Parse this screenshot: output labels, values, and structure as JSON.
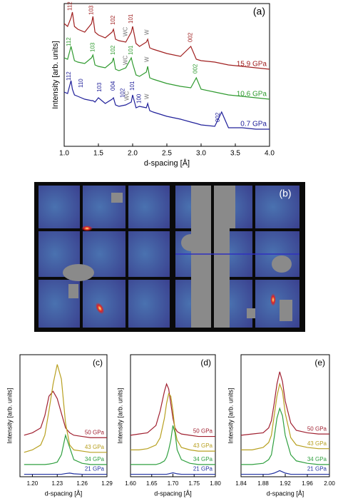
{
  "chart_data": [
    {
      "type": "line",
      "title": "(a)",
      "x_label": "d-spacing [Å]",
      "y_label": "Intensity [arb. units]",
      "xlim": [
        1,
        4
      ],
      "ylim": [
        0,
        100
      ],
      "xticks": [
        {
          "value": 1,
          "label": "1.0"
        },
        1.5,
        {
          "value": 2,
          "label": "2.0"
        },
        2.5,
        {
          "value": 3,
          "label": "3.0"
        },
        3.5,
        {
          "value": 4,
          "label": "4.0"
        }
      ],
      "x": [
        1.0,
        1.05,
        1.1,
        1.12,
        1.15,
        1.2,
        1.3,
        1.4,
        1.42,
        1.45,
        1.5,
        1.6,
        1.7,
        1.72,
        1.75,
        1.8,
        1.9,
        1.98,
        2.0,
        2.05,
        2.1,
        2.2,
        2.22,
        2.25,
        2.3,
        2.5,
        2.7,
        2.85,
        2.93,
        3.0,
        3.2,
        3.3,
        3.4,
        3.6,
        3.8,
        4.0
      ],
      "series": [
        {
          "name": "15.9 GPa",
          "color": "#a02020",
          "values": [
            86,
            84,
            90,
            94,
            84,
            82,
            80,
            86,
            91,
            80,
            78,
            76,
            80,
            82,
            75,
            74,
            73,
            80,
            84,
            72,
            70,
            73,
            75,
            69,
            68,
            65,
            63,
            70,
            61,
            60,
            59,
            58,
            57,
            56,
            55,
            54
          ]
        },
        {
          "name": "10.6 GPa",
          "color": "#2f9a2f",
          "values": [
            62,
            61,
            70,
            66,
            60,
            59,
            58,
            62,
            64,
            57,
            56,
            55,
            59,
            62,
            54,
            53,
            55,
            62,
            58,
            50,
            49,
            52,
            56,
            48,
            47,
            44,
            42,
            41,
            48,
            40,
            38,
            37,
            36,
            35,
            34,
            33
          ]
        },
        {
          "name": "0.7 GPa",
          "color": "#20209a",
          "values": [
            38,
            37,
            46,
            40,
            36,
            35,
            33,
            32,
            32,
            31,
            34,
            30,
            33,
            34,
            29,
            28,
            29,
            31,
            36,
            27,
            28,
            27,
            30,
            25,
            24,
            21,
            19,
            17,
            16,
            15,
            14,
            24,
            13,
            13,
            12,
            12
          ]
        }
      ],
      "annotations": [
        {
          "text": "112",
          "x": 1.09,
          "y": 95,
          "color": "#a02020"
        },
        {
          "text": "103",
          "x": 1.4,
          "y": 92,
          "color": "#a02020"
        },
        {
          "text": "102",
          "x": 1.72,
          "y": 85,
          "color": "#a02020"
        },
        {
          "text": "101",
          "x": 1.98,
          "y": 86,
          "color": "#a02020"
        },
        {
          "text": "WC",
          "x": 1.9,
          "y": 77,
          "color": "#777777"
        },
        {
          "text": "W",
          "x": 2.21,
          "y": 78,
          "color": "#777777"
        },
        {
          "text": "002",
          "x": 2.85,
          "y": 73,
          "color": "#a02020"
        },
        {
          "text": "112",
          "x": 1.07,
          "y": 70,
          "color": "#2f9a2f"
        },
        {
          "text": "103",
          "x": 1.42,
          "y": 66,
          "color": "#2f9a2f"
        },
        {
          "text": "102",
          "x": 1.72,
          "y": 64,
          "color": "#2f9a2f"
        },
        {
          "text": "101",
          "x": 1.98,
          "y": 64,
          "color": "#2f9a2f"
        },
        {
          "text": "WC",
          "x": 1.9,
          "y": 57,
          "color": "#777777"
        },
        {
          "text": "W",
          "x": 2.21,
          "y": 59,
          "color": "#777777"
        },
        {
          "text": "002",
          "x": 2.92,
          "y": 51,
          "color": "#2f9a2f"
        },
        {
          "text": "112",
          "x": 1.07,
          "y": 46,
          "color": "#20209a"
        },
        {
          "text": "110",
          "x": 1.25,
          "y": 41,
          "color": "#20209a"
        },
        {
          "text": "103",
          "x": 1.52,
          "y": 38,
          "color": "#20209a"
        },
        {
          "text": "004",
          "x": 1.72,
          "y": 39,
          "color": "#20209a"
        },
        {
          "text": "102",
          "x": 1.86,
          "y": 34,
          "color": "#20209a"
        },
        {
          "text": "101",
          "x": 2.0,
          "y": 39,
          "color": "#20209a"
        },
        {
          "text": "WC",
          "x": 1.92,
          "y": 32,
          "color": "#777777"
        },
        {
          "text": "100",
          "x": 2.1,
          "y": 30,
          "color": "#20209a"
        },
        {
          "text": "W",
          "x": 2.21,
          "y": 33,
          "color": "#777777"
        },
        {
          "text": "002",
          "x": 3.25,
          "y": 17,
          "color": "#20209a"
        }
      ]
    },
    {
      "type": "line",
      "title": "(c)",
      "x_label": "d-spacing [Å]",
      "y_label": "Intensity [arb. units]",
      "xlim": [
        1.185,
        1.29
      ],
      "ylim": [
        0,
        50
      ],
      "xticks": [
        {
          "value": 1.2,
          "label": "1.20"
        },
        1.23,
        1.26,
        1.29
      ],
      "x": [
        1.19,
        1.2,
        1.21,
        1.215,
        1.22,
        1.225,
        1.23,
        1.235,
        1.24,
        1.245,
        1.25,
        1.26,
        1.27,
        1.28,
        1.29
      ],
      "series": [
        {
          "name": "50 GPa",
          "color": "#a02030",
          "values": [
            17,
            18,
            20,
            25,
            33,
            35,
            32,
            26,
            20,
            18,
            17,
            16.5,
            16,
            16,
            16
          ]
        },
        {
          "name": "43 GPa",
          "color": "#b8a020",
          "values": [
            10,
            11,
            13,
            17,
            27,
            38,
            46,
            40,
            22,
            13,
            11,
            10.5,
            10,
            10,
            10
          ]
        },
        {
          "name": "34 GPa",
          "color": "#30a040",
          "values": [
            5,
            5,
            5,
            5,
            5.2,
            5.5,
            6,
            9,
            17,
            12,
            7,
            5.5,
            5,
            5,
            5
          ]
        },
        {
          "name": "21 GPa",
          "color": "#2030a0",
          "values": [
            1,
            1,
            1,
            1,
            1,
            1,
            1,
            1,
            1.3,
            1.5,
            1.2,
            1,
            1,
            1,
            1
          ]
        }
      ]
    },
    {
      "type": "line",
      "title": "(d)",
      "x_label": "d-spacing [Å]",
      "y_label": "Intensity [arb. units]",
      "xlim": [
        1.6,
        1.8
      ],
      "ylim": [
        0,
        50
      ],
      "xticks": [
        {
          "value": 1.6,
          "label": "1.60"
        },
        1.65,
        {
          "value": 1.7,
          "label": "1.70"
        },
        1.75,
        {
          "value": 1.8,
          "label": "1.80"
        }
      ],
      "x": [
        1.6,
        1.62,
        1.64,
        1.66,
        1.67,
        1.68,
        1.685,
        1.69,
        1.695,
        1.7,
        1.705,
        1.71,
        1.72,
        1.74,
        1.76,
        1.78,
        1.8
      ],
      "series": [
        {
          "name": "50 GPa",
          "color": "#a02030",
          "values": [
            17,
            17.5,
            18,
            21,
            27,
            35,
            38,
            36,
            30,
            24,
            20,
            18.5,
            17.5,
            17,
            16.5,
            16.5,
            16.5
          ]
        },
        {
          "name": "43 GPa",
          "color": "#b8a020",
          "values": [
            11,
            11,
            11.5,
            13,
            16,
            24,
            30,
            34,
            33,
            27,
            19,
            15,
            12,
            11,
            10.5,
            10.5,
            10.5
          ]
        },
        {
          "name": "34 GPa",
          "color": "#30a040",
          "values": [
            5,
            5,
            5,
            5,
            5.5,
            6.5,
            8,
            11,
            15,
            21,
            18,
            11,
            7,
            5.5,
            5,
            5,
            5
          ]
        },
        {
          "name": "21 GPa",
          "color": "#2030a0",
          "values": [
            1,
            1,
            1,
            1,
            1,
            1,
            1,
            1.2,
            1.4,
            1.6,
            1.4,
            1.2,
            1,
            1,
            1,
            1,
            1
          ]
        }
      ]
    },
    {
      "type": "line",
      "title": "(e)",
      "x_label": "d-spacing [Å]",
      "y_label": "Intensity [arb. units]",
      "xlim": [
        1.84,
        2.0
      ],
      "ylim": [
        0,
        50
      ],
      "xticks": [
        1.84,
        1.88,
        1.92,
        1.96,
        {
          "value": 2,
          "label": "2.00"
        }
      ],
      "x": [
        1.84,
        1.86,
        1.88,
        1.89,
        1.895,
        1.9,
        1.905,
        1.91,
        1.915,
        1.92,
        1.93,
        1.94,
        1.96,
        1.98,
        2.0
      ],
      "series": [
        {
          "name": "50 GPa",
          "color": "#a02030",
          "values": [
            17,
            17.5,
            18,
            20,
            23,
            30,
            38,
            43,
            39,
            31,
            22,
            19,
            18,
            17.5,
            17.5
          ]
        },
        {
          "name": "43 GPa",
          "color": "#b8a020",
          "values": [
            11,
            11,
            12,
            14,
            17,
            25,
            33,
            38,
            35,
            26,
            16,
            13,
            12,
            11.5,
            11.5
          ]
        },
        {
          "name": "34 GPa",
          "color": "#30a040",
          "values": [
            5,
            5,
            5.5,
            7,
            9,
            16,
            24,
            28,
            25,
            17,
            9,
            6.5,
            5.5,
            5,
            5
          ]
        },
        {
          "name": "21 GPa",
          "color": "#2030a0",
          "values": [
            1,
            1,
            1,
            1,
            1.2,
            1.5,
            2,
            2.5,
            2,
            1.5,
            1,
            1,
            1,
            1,
            1
          ]
        }
      ]
    }
  ],
  "image": {
    "title": "(b)"
  }
}
